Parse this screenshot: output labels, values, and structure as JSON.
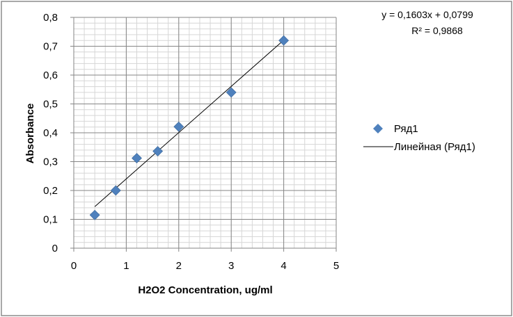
{
  "chart_data": {
    "type": "scatter",
    "xlabel": "H2O2 Concentration, ug/ml",
    "ylabel": "Absorbance",
    "xlim": [
      0,
      5
    ],
    "ylim": [
      0,
      0.8
    ],
    "x_ticks": [
      "0",
      "1",
      "2",
      "3",
      "4",
      "5"
    ],
    "y_ticks": [
      "0",
      "0,1",
      "0,2",
      "0,3",
      "0,4",
      "0,5",
      "0,6",
      "0,7",
      "0,8"
    ],
    "grid": true,
    "legend_position": "right",
    "series": [
      {
        "name": "Ряд1",
        "color": "#4f81bd",
        "marker": "diamond",
        "x": [
          0.4,
          0.8,
          1.2,
          1.6,
          2.0,
          3.0,
          4.0
        ],
        "y": [
          0.115,
          0.2,
          0.312,
          0.336,
          0.421,
          0.54,
          0.72
        ]
      }
    ],
    "trendline": {
      "name": "Линейная (Ряд1)",
      "type": "linear",
      "slope": 0.1603,
      "intercept": 0.0799,
      "x_range": [
        0.4,
        4.0
      ],
      "equation": "y = 0,1603x + 0,0799",
      "r2_label": "R² = 0,9868",
      "color": "#000000"
    }
  }
}
